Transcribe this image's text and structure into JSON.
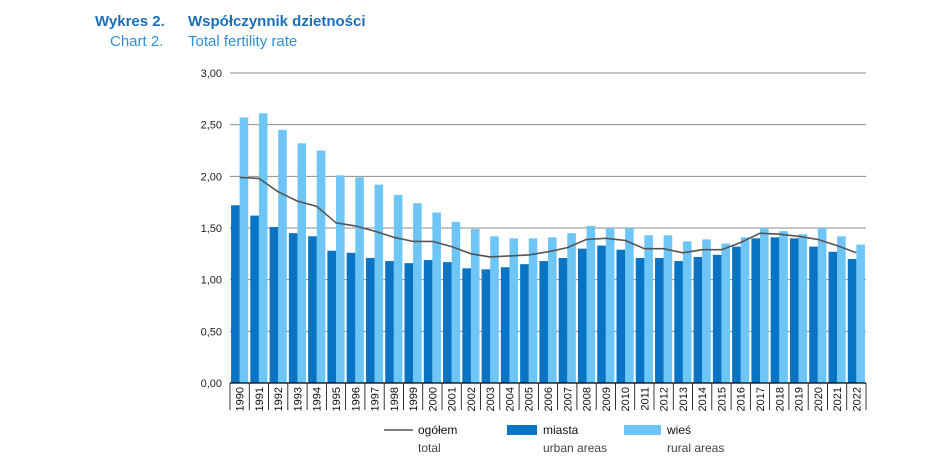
{
  "header": {
    "label_pl": "Wykres 2.",
    "title_pl": "Współczynnik dzietności",
    "label_en": "Chart 2.",
    "title_en": "Total fertility rate"
  },
  "colors": {
    "urban": "#0a74c4",
    "rural": "#6ec6f7",
    "total": "#555555",
    "grid": "#8c8c8c",
    "axis": "#000000"
  },
  "chart_data": {
    "type": "bar",
    "title": "Współczynnik dzietności / Total fertility rate",
    "xlabel": "",
    "ylabel": "",
    "ylim": [
      0,
      3
    ],
    "yticks": [
      "0,00",
      "0,50",
      "1,00",
      "1,50",
      "2,00",
      "2,50",
      "3,00"
    ],
    "yticks_values": [
      0,
      0.5,
      1,
      1.5,
      2,
      2.5,
      3
    ],
    "grid": true,
    "legend_position": "bottom",
    "categories": [
      "1990",
      "1991",
      "1992",
      "1993",
      "1994",
      "1995",
      "1996",
      "1997",
      "1998",
      "1999",
      "2000",
      "2001",
      "2002",
      "2003",
      "2004",
      "2005",
      "2006",
      "2007",
      "2008",
      "2009",
      "2010",
      "2011",
      "2012",
      "2013",
      "2014",
      "2015",
      "2016",
      "2017",
      "2018",
      "2019",
      "2020",
      "2021",
      "2022"
    ],
    "series": [
      {
        "key": "urban",
        "name": "miasta",
        "name_en": "urban areas",
        "type": "bar",
        "values": [
          1.72,
          1.62,
          1.51,
          1.45,
          1.42,
          1.28,
          1.26,
          1.21,
          1.18,
          1.16,
          1.19,
          1.17,
          1.11,
          1.1,
          1.12,
          1.15,
          1.18,
          1.21,
          1.3,
          1.33,
          1.29,
          1.21,
          1.21,
          1.18,
          1.22,
          1.24,
          1.32,
          1.4,
          1.41,
          1.4,
          1.32,
          1.27,
          1.2
        ]
      },
      {
        "key": "rural",
        "name": "wieś",
        "name_en": "rural areas",
        "type": "bar",
        "values": [
          2.57,
          2.61,
          2.45,
          2.32,
          2.25,
          2.01,
          1.99,
          1.92,
          1.82,
          1.74,
          1.65,
          1.56,
          1.49,
          1.42,
          1.4,
          1.4,
          1.41,
          1.45,
          1.52,
          1.5,
          1.5,
          1.43,
          1.43,
          1.37,
          1.39,
          1.35,
          1.41,
          1.5,
          1.47,
          1.44,
          1.5,
          1.42,
          1.34
        ]
      },
      {
        "key": "total",
        "name": "ogółem",
        "name_en": "total",
        "type": "line",
        "values": [
          1.99,
          1.98,
          1.85,
          1.76,
          1.71,
          1.55,
          1.52,
          1.47,
          1.41,
          1.37,
          1.37,
          1.32,
          1.25,
          1.22,
          1.23,
          1.24,
          1.27,
          1.31,
          1.39,
          1.4,
          1.38,
          1.3,
          1.3,
          1.26,
          1.29,
          1.29,
          1.36,
          1.45,
          1.44,
          1.42,
          1.39,
          1.33,
          1.26
        ]
      }
    ]
  }
}
